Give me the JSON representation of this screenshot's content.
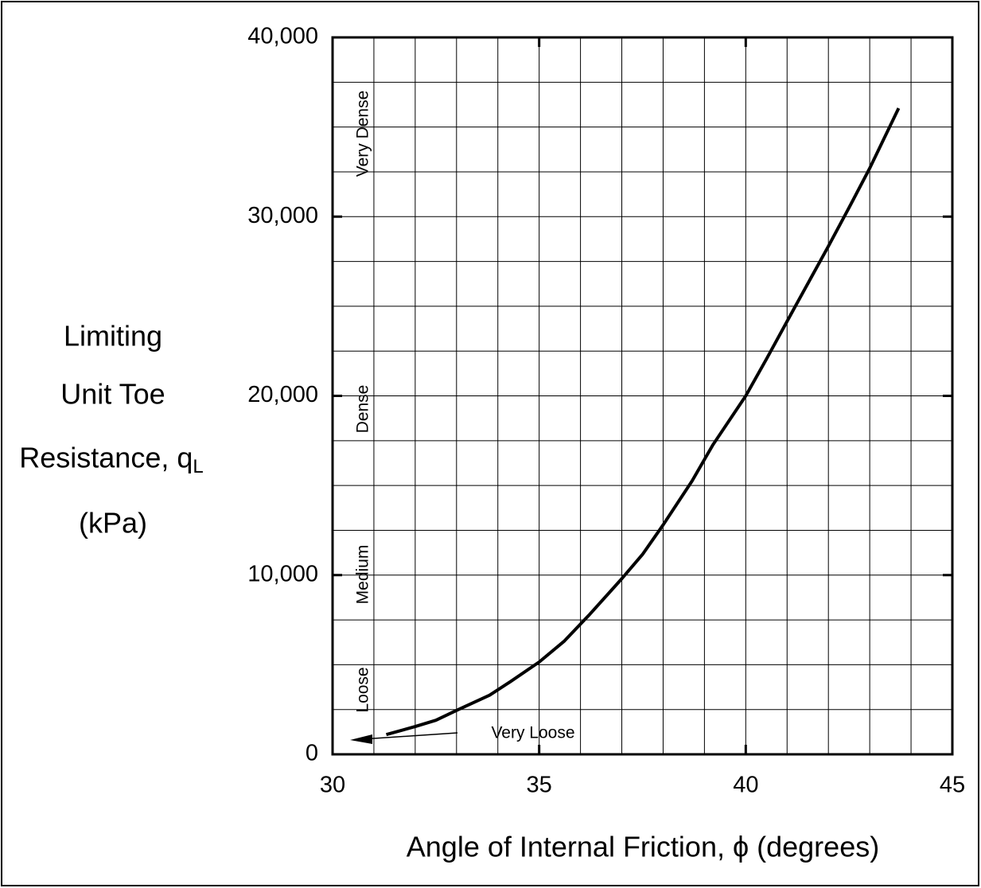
{
  "chart_data": {
    "type": "line",
    "xlabel": "Angle of Internal Friction, ϕ (degrees)",
    "ylabel_lines": [
      "Limiting",
      "Unit Toe",
      "Resistance, q",
      "(kPa)"
    ],
    "ylabel_subscript": "L",
    "annotations": [
      "Very Dense",
      "Dense",
      "Medium",
      "Loose",
      "Very Loose"
    ],
    "series": [
      {
        "name": "Limiting unit toe resistance",
        "color": "#000000",
        "x": [
          31.3,
          32,
          32.5,
          33,
          33.8,
          34.3,
          35,
          35.6,
          36.2,
          37,
          37.5,
          38,
          38.7,
          39.2,
          40,
          40.5,
          41.2,
          42,
          42.5,
          43,
          43.7
        ],
        "values": [
          1100,
          1550,
          1900,
          2450,
          3300,
          4050,
          5150,
          6300,
          7750,
          9800,
          11150,
          12800,
          15250,
          17250,
          20000,
          22050,
          25000,
          28350,
          30500,
          32700,
          36050
        ]
      }
    ],
    "xlim": [
      30,
      45
    ],
    "xticks": [
      30,
      35,
      40,
      45
    ],
    "ylim": [
      0,
      40000
    ],
    "yticks": [
      0,
      {
        "value": 10000,
        "label": "10,000"
      },
      {
        "value": 20000,
        "label": "20,000"
      },
      {
        "value": 30000,
        "label": "30,000"
      },
      {
        "value": 40000,
        "label": "40,000"
      }
    ],
    "x_minor_ticks": [
      31,
      32,
      33,
      34,
      35,
      36,
      37,
      38,
      39,
      40,
      41,
      42,
      43,
      44
    ],
    "y_minor_ticks": [
      2500,
      5000,
      7500,
      10000,
      12500,
      15000,
      17500,
      20000,
      22500,
      25000,
      27500,
      30000,
      32500,
      35000,
      37500
    ],
    "grid": true
  }
}
